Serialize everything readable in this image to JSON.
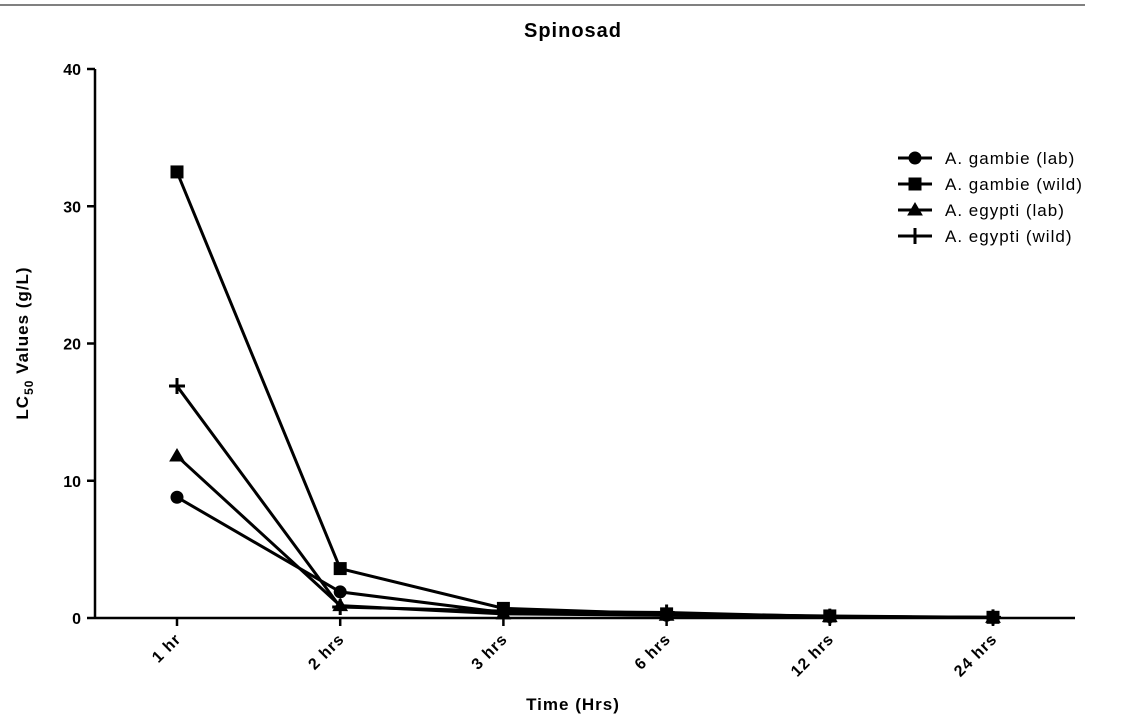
{
  "chart_data": {
    "type": "line",
    "title": "Spinosad",
    "xlabel": "Time (Hrs)",
    "ylabel": [
      "LC",
      "50",
      " Values (g/L)"
    ],
    "categories": [
      "1 hr",
      "2 hrs",
      "3 hrs",
      "6 hrs",
      "12 hrs",
      "24 hrs"
    ],
    "series": [
      {
        "name": "A. gambie (lab)",
        "color": "#000000",
        "marker": "circle",
        "values": [
          8.8,
          1.9,
          0.4,
          0.2,
          0.1,
          0.05
        ]
      },
      {
        "name": "A. gambie (wild)",
        "color": "#000000",
        "marker": "square",
        "values": [
          32.5,
          3.6,
          0.7,
          0.3,
          0.15,
          0.05
        ]
      },
      {
        "name": "A. egypti (lab)",
        "color": "#000000",
        "marker": "triangle",
        "values": [
          11.8,
          0.9,
          0.3,
          0.2,
          0.1,
          0.05
        ]
      },
      {
        "name": "A. egypti (wild)",
        "color": "#000000",
        "marker": "plus",
        "values": [
          16.9,
          0.8,
          0.5,
          0.4,
          0.1,
          0.05
        ]
      }
    ],
    "ylim": [
      0,
      40
    ],
    "yticks": [
      0,
      10,
      20,
      30,
      40
    ],
    "legend": "upper right"
  }
}
